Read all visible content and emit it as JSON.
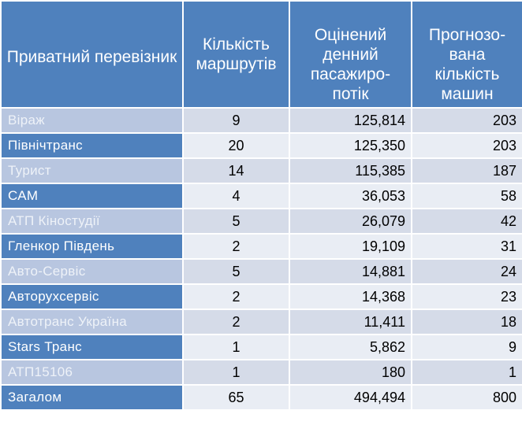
{
  "table": {
    "headers": [
      "Приватний перевізник",
      "Кількість маршрутів",
      "Оцінений денний пасажиро-потік",
      "Прогнозо-вана кількість машин"
    ],
    "rows": [
      {
        "name": "Віраж",
        "routes": "9",
        "flow": "125,814",
        "vehicles": "203"
      },
      {
        "name": "Північтранс",
        "routes": "20",
        "flow": "125,350",
        "vehicles": "203"
      },
      {
        "name": "Турист",
        "routes": "14",
        "flow": "115,385",
        "vehicles": "187"
      },
      {
        "name": "САМ",
        "routes": "4",
        "flow": "36,053",
        "vehicles": "58"
      },
      {
        "name": "АТП Кіностудії",
        "routes": "5",
        "flow": "26,079",
        "vehicles": "42"
      },
      {
        "name": "Гленкор Південь",
        "routes": "2",
        "flow": "19,109",
        "vehicles": "31"
      },
      {
        "name": "Авто-Сервіс",
        "routes": "5",
        "flow": "14,881",
        "vehicles": "24"
      },
      {
        "name": "Авторухсервіс",
        "routes": "2",
        "flow": "14,368",
        "vehicles": "23"
      },
      {
        "name": "Автотранс Україна",
        "routes": "2",
        "flow": "11,411",
        "vehicles": "18"
      },
      {
        "name": "Stars Транс",
        "routes": "1",
        "flow": "5,862",
        "vehicles": "9"
      },
      {
        "name": "АТП15106",
        "routes": "1",
        "flow": "180",
        "vehicles": "1"
      },
      {
        "name": "Загалом",
        "routes": "65",
        "flow": "494,494",
        "vehicles": "800"
      }
    ]
  },
  "colors": {
    "header": "#4f81bd",
    "row_light": "#d5dbe8",
    "row_dark": "#e9edf4"
  }
}
